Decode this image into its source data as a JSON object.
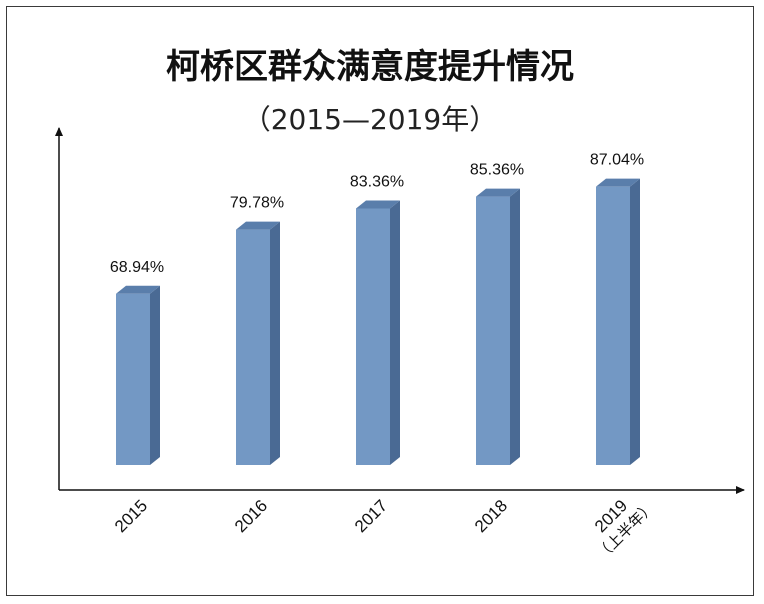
{
  "chart_data": {
    "type": "bar",
    "title": "柯桥区群众满意度提升情况",
    "subtitle": "（2015—2019年）",
    "categories": [
      "2015",
      "2016",
      "2017",
      "2018",
      "2019"
    ],
    "category_notes": [
      "",
      "",
      "",
      "",
      "（上半年）"
    ],
    "values": [
      68.94,
      79.78,
      83.36,
      85.36,
      87.04
    ],
    "data_labels": [
      "68.94%",
      "79.78%",
      "83.36%",
      "85.36%",
      "87.04%"
    ],
    "value_unit": "%",
    "xlabel": "",
    "ylabel": "",
    "ylim": [
      40,
      100
    ],
    "grid": false,
    "legend": "none",
    "bar_style": "3d",
    "colors": {
      "bar_front": "#7398c4",
      "bar_side": "#4a6a94",
      "bar_top": "#5a7eab",
      "axis": "#111111"
    }
  }
}
